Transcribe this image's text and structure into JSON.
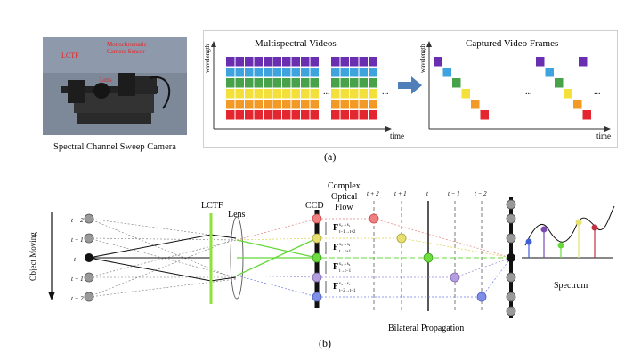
{
  "camera_photo": {
    "label_lctf": "LCTF",
    "label_sensor": "Monochromatic\nCamera Sensor",
    "label_lens": "Lens",
    "caption": "Spectral Channel Sweep  Camera"
  },
  "panel_a": {
    "title_left": "Multispectral Videos",
    "title_right": "Captured Video Frames",
    "axis_wavelength": "wavelength",
    "axis_time": "time",
    "ellipsis": "...",
    "caption": "(a)",
    "colors": [
      "#6a2fb0",
      "#3fa4dd",
      "#47a24a",
      "#f3e03a",
      "#f39a26",
      "#e3262f"
    ]
  },
  "panel_b": {
    "object_moving": "Object Moving",
    "t_labels": [
      "t − 2",
      "t − 1",
      "t",
      "t + 1",
      "t + 2"
    ],
    "lctf": "LCTF",
    "lens": "Lens",
    "ccd": "CCD",
    "optical_flow_title": "Complex\nOptical\nFlow",
    "flow_labels": [
      {
        "main": "F",
        "sup": "s₂→s₁",
        "sub": "t−1→t+2"
      },
      {
        "main": "F",
        "sup": "s₃→s₂",
        "sub": "t→t+1"
      },
      {
        "main": "F",
        "sup": "s₃→s₄",
        "sub": "t→t−1"
      },
      {
        "main": "F",
        "sup": "s₄→s₅",
        "sub": "t−2→t−1"
      }
    ],
    "time_labels": [
      "t + 2",
      "t + 1",
      "t",
      "t − 1",
      "t − 2"
    ],
    "bilateral": "Bilateral Propagation",
    "spectrum": "Spectrum",
    "caption": "(b)"
  }
}
